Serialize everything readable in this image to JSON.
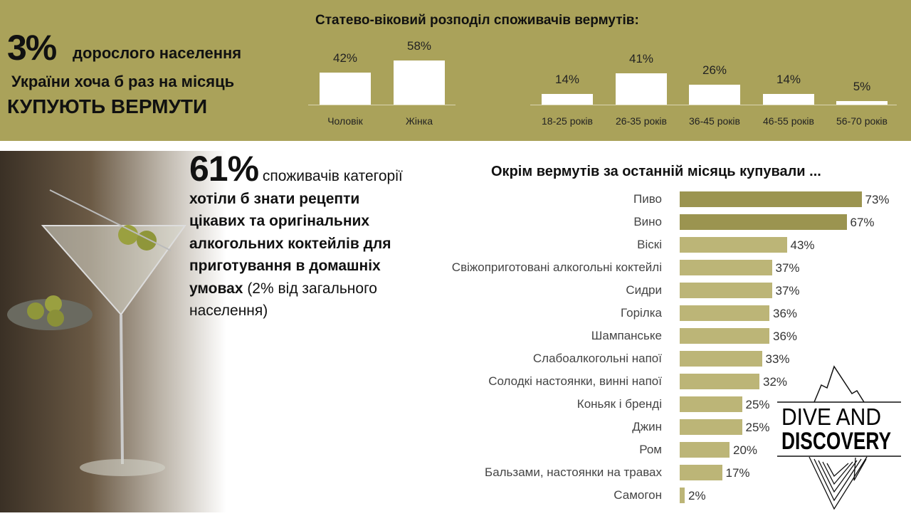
{
  "header": {
    "big": "3%",
    "line1": "дорослого населення",
    "line2": "України хоча б раз на місяць",
    "line3": "КУПУЮТЬ ВЕРМУТИ"
  },
  "top_chart": {
    "title": "Статево-віковий розподіл споживачів вермутів:",
    "type": "bar",
    "bar_color": "#ffffff",
    "categories": [
      "Чоловік",
      "Жінка",
      "18-25 років",
      "26-35 років",
      "36-45 років",
      "46-55 років",
      "56-70 років"
    ],
    "values": [
      42,
      58,
      14,
      41,
      26,
      14,
      5
    ],
    "labels": [
      "42%",
      "58%",
      "14%",
      "41%",
      "26%",
      "14%",
      "5%"
    ]
  },
  "info": {
    "big": "61%",
    "t1": " споживачів категорії ",
    "b1": "хотіли б знати рецепти цікавих та оригінальних алкогольних коктейлів для приготування в домашніх умовах",
    "t2": "  (2% від загального населення)"
  },
  "chart_data": {
    "type": "bar",
    "orientation": "horizontal",
    "title": "Окрім вермутів за останній місяць купували ...",
    "categories": [
      "Пиво",
      "Вино",
      "Віскі",
      "Свіжоприготовані алкогольні коктейлі",
      "Сидри",
      "Горілка",
      "Шампанське",
      "Слабоалкогольні напої",
      "Солодкі настоянки, винні напої",
      "Коньяк і бренді",
      "Джин",
      "Ром",
      "Бальзами, настоянки на травах",
      "Самогон"
    ],
    "values": [
      73,
      67,
      43,
      37,
      37,
      36,
      36,
      33,
      32,
      25,
      25,
      20,
      17,
      2
    ],
    "labels": [
      "73%",
      "67%",
      "43%",
      "37%",
      "37%",
      "36%",
      "36%",
      "33%",
      "32%",
      "25%",
      "25%",
      "20%",
      "17%",
      "2%"
    ],
    "colors": {
      "highlight": "#9b9450",
      "default": "#bcb577"
    }
  },
  "logo": {
    "line1": "DIVE AND",
    "line2": "DISCOVERY"
  }
}
